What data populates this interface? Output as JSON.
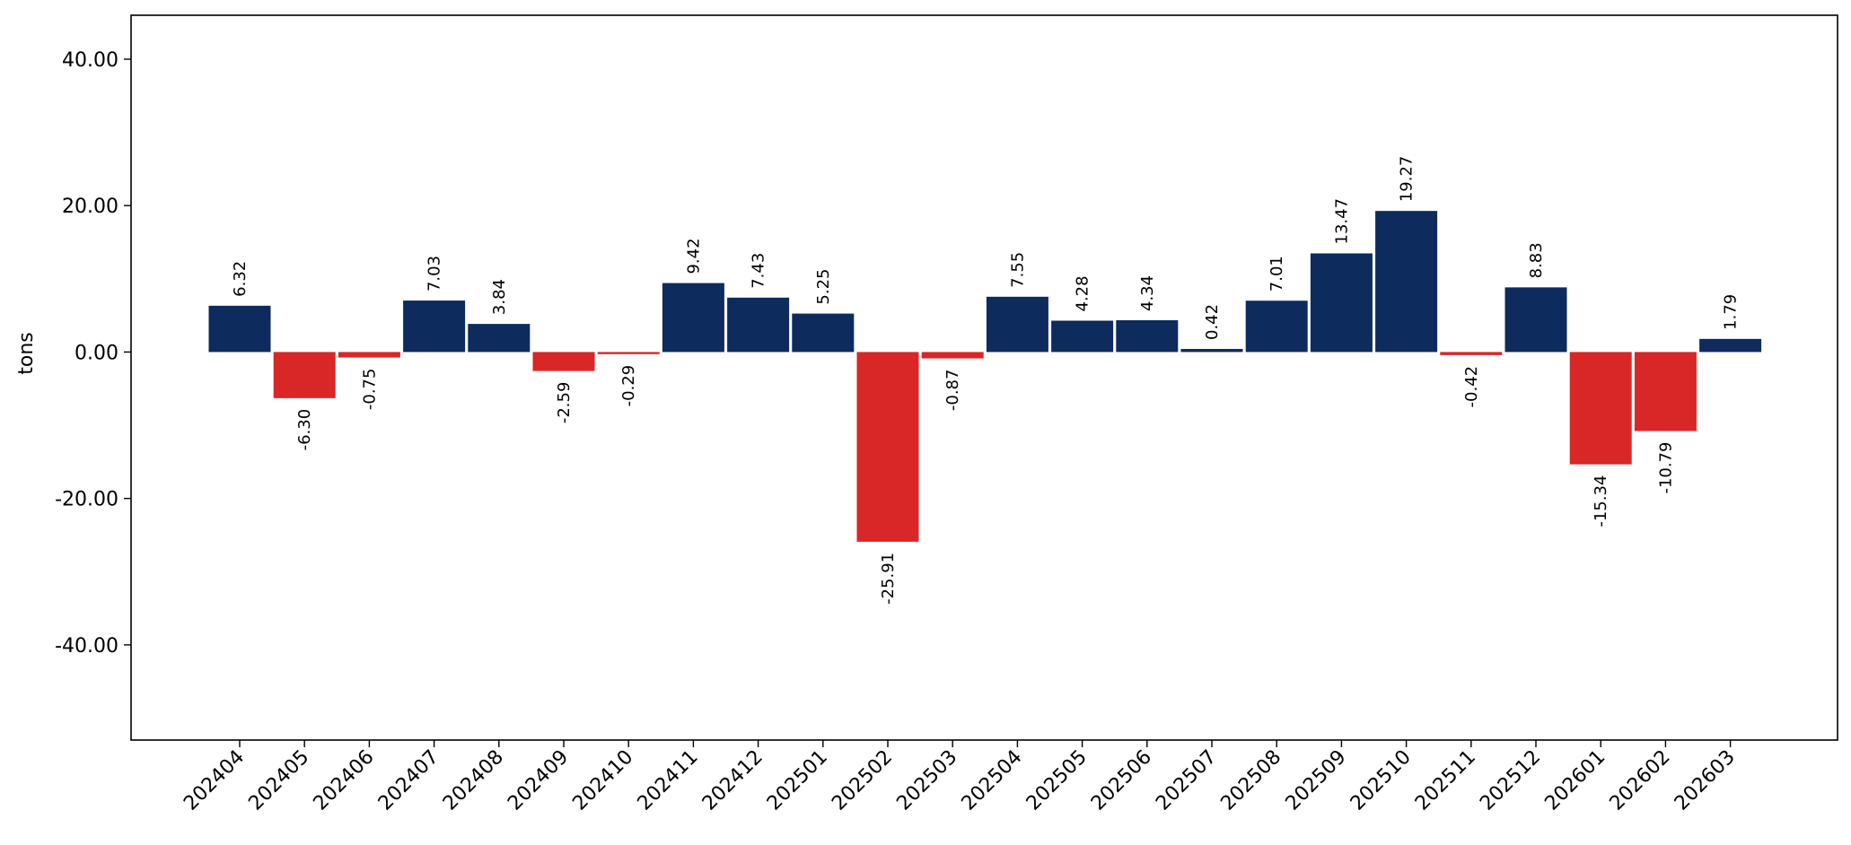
{
  "chart_data": {
    "type": "bar",
    "categories": [
      "202404",
      "202405",
      "202406",
      "202407",
      "202408",
      "202409",
      "202410",
      "202411",
      "202412",
      "202501",
      "202502",
      "202503",
      "202504",
      "202505",
      "202506",
      "202507",
      "202508",
      "202509",
      "202510",
      "202511",
      "202512",
      "202601",
      "202602",
      "202603"
    ],
    "values": [
      6.32,
      -6.3,
      -0.75,
      7.03,
      3.84,
      -2.59,
      -0.29,
      9.42,
      7.43,
      5.25,
      -25.91,
      -0.87,
      7.55,
      4.28,
      4.34,
      0.42,
      7.01,
      13.47,
      19.27,
      -0.42,
      8.83,
      -15.34,
      -10.79,
      1.79
    ],
    "value_labels": [
      "6.32",
      "-6.30",
      "-0.75",
      "7.03",
      "3.84",
      "-2.59",
      "-0.29",
      "9.42",
      "7.43",
      "5.25",
      "-25.91",
      "-0.87",
      "7.55",
      "4.28",
      "4.34",
      "0.42",
      "7.01",
      "13.47",
      "19.27",
      "-0.42",
      "8.83",
      "-15.34",
      "-10.79",
      "1.79"
    ],
    "title": "",
    "xlabel": "",
    "ylabel": "tons",
    "ylim": [
      -53,
      46
    ],
    "yticks": [
      40,
      20,
      0,
      -20,
      -40
    ],
    "ytick_labels": [
      "40.00",
      "20.00",
      "0.00",
      "-20.00",
      "-40.00"
    ],
    "grid": false,
    "colors": {
      "positive": "#0d2b5c",
      "negative": "#d92626"
    }
  }
}
